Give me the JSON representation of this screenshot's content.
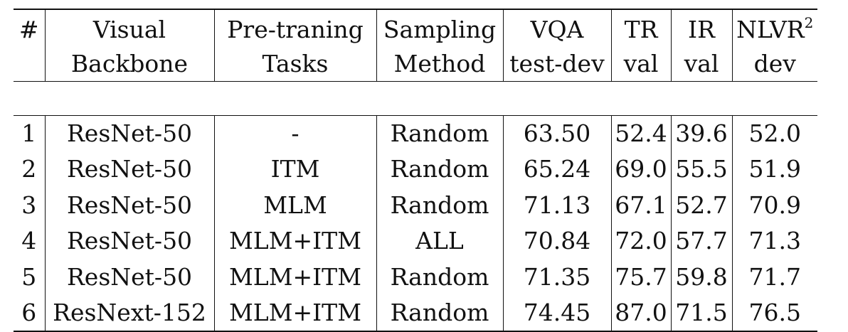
{
  "header": {
    "c0": [
      "#",
      ""
    ],
    "c1": [
      "Visual",
      "Backbone"
    ],
    "c2": [
      "Pre-traning",
      "Tasks"
    ],
    "c3": [
      "Sampling",
      "Method"
    ],
    "c4": [
      "VQA",
      "test-dev"
    ],
    "c5": [
      "TR",
      "val"
    ],
    "c6": [
      "IR",
      "val"
    ],
    "c7_main": "NLVR",
    "c7_sup": "2",
    "c7_sub": "dev"
  },
  "rows": [
    {
      "id": "1",
      "backbone": "ResNet-50",
      "tasks": "-",
      "sampling": "Random",
      "vqa": "63.50",
      "tr": "52.4",
      "ir": "39.6",
      "nlvr": "52.0"
    },
    {
      "id": "2",
      "backbone": "ResNet-50",
      "tasks": "ITM",
      "sampling": "Random",
      "vqa": "65.24",
      "tr": "69.0",
      "ir": "55.5",
      "nlvr": "51.9"
    },
    {
      "id": "3",
      "backbone": "ResNet-50",
      "tasks": "MLM",
      "sampling": "Random",
      "vqa": "71.13",
      "tr": "67.1",
      "ir": "52.7",
      "nlvr": "70.9"
    },
    {
      "id": "4",
      "backbone": "ResNet-50",
      "tasks": "MLM+ITM",
      "sampling": "ALL",
      "vqa": "70.84",
      "tr": "72.0",
      "ir": "57.7",
      "nlvr": "71.3"
    },
    {
      "id": "5",
      "backbone": "ResNet-50",
      "tasks": "MLM+ITM",
      "sampling": "Random",
      "vqa": "71.35",
      "tr": "75.7",
      "ir": "59.8",
      "nlvr": "71.7"
    },
    {
      "id": "6",
      "backbone": "ResNext-152",
      "tasks": "MLM+ITM",
      "sampling": "Random",
      "vqa": "74.45",
      "tr": "87.0",
      "ir": "71.5",
      "nlvr": "76.5"
    }
  ]
}
